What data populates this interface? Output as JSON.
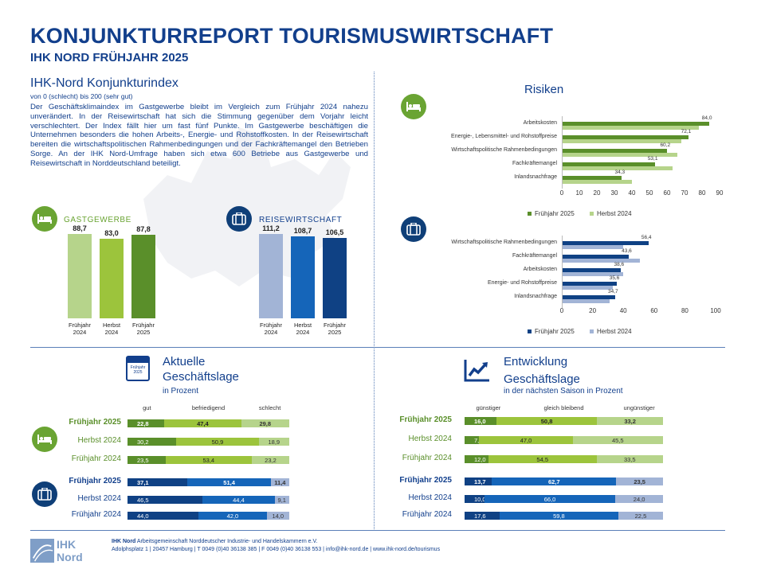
{
  "header": {
    "title": "KONJUNKTURREPORT TOURISMUSWIRTSCHAFT",
    "subtitle": "IHK NORD FRÜHJAHR 2025"
  },
  "index": {
    "title": "IHK-Nord Konjunkturindex",
    "scale": "von 0 (schlecht) bis 200 (sehr gut)",
    "text": "Der Geschäftsklimaindex im Gastgewerbe bleibt im Vergleich zum Frühjahr 2024 nahezu unverändert. In der Reisewirtschaft hat sich die Stimmung gegenüber dem Vorjahr leicht verschlechtert. Der Index fällt hier um fast fünf Punkte. Im Gastgewerbe beschäftigen die Unternehmen besonders die hohen Arbeits-, Energie- und Rohstoffkosten. In der Reisewirtschaft bereiten die wirtschaftspolitischen Rahmenbedingungen und der Fachkräftemangel den Betrieben Sorge. An der IHK Nord-Umfrage haben sich etwa 600 Betriebe aus Gastgewerbe und Reisewirtschaft in Norddeutschland beteiligt."
  },
  "colors": {
    "navy": "#123f8c",
    "green_light": "#b6d48b",
    "green_mid": "#9cc43c",
    "green_dark": "#5a8f2a",
    "blue_light": "#a2b4d6",
    "blue_mid": "#1565b9",
    "blue_dark": "#0f4184"
  },
  "chart_data": [
    {
      "type": "bar",
      "id": "gastgewerbe",
      "label": "GASTGEWERBE",
      "icon": "bed-icon",
      "categories": [
        "Frühjahr 2024",
        "Herbst 2024",
        "Frühjahr 2025"
      ],
      "values": [
        88.7,
        83.0,
        87.8
      ],
      "value_labels": [
        "88,7",
        "83,0",
        "87,8"
      ]
    },
    {
      "type": "bar",
      "id": "reisewirtschaft",
      "label": "REISEWIRTSCHAFT",
      "icon": "luggage-icon",
      "categories": [
        "Frühjahr 2024",
        "Herbst 2024",
        "Frühjahr 2025"
      ],
      "values": [
        111.2,
        108.7,
        106.5
      ],
      "value_labels": [
        "111,2",
        "108,7",
        "106,5"
      ]
    },
    {
      "type": "bar",
      "id": "risiken-gastgewerbe",
      "title": "Risiken",
      "orientation": "horizontal",
      "icon": "bed-icon",
      "categories": [
        "Arbeitskosten",
        "Energie-, Lebensmittel- und Rohstoffpreise",
        "Wirtschaftspolitische Rahmenbedingungen",
        "Fachkräftemangel",
        "Inlandsnachfrage"
      ],
      "series": [
        {
          "name": "Frühjahr 2025",
          "values": [
            84.0,
            72.1,
            60.2,
            53.1,
            34.3
          ],
          "value_labels": [
            "84,0",
            "72,1",
            "60,2",
            "53,1",
            "34,3"
          ]
        },
        {
          "name": "Herbst 2024",
          "values": [
            78,
            68,
            66,
            63,
            40
          ]
        }
      ],
      "xlim": [
        0,
        90
      ],
      "xticks": [
        "0",
        "10",
        "20",
        "30",
        "40",
        "50",
        "60",
        "70",
        "80",
        "90"
      ]
    },
    {
      "type": "bar",
      "id": "risiken-reisewirtschaft",
      "orientation": "horizontal",
      "icon": "luggage-icon",
      "categories": [
        "Wirtschaftspolitische Rahmenbedingungen",
        "Fachkräftemangel",
        "Arbeitskosten",
        "Energie- und Rohstoffpreise",
        "Inlandsnachfrage"
      ],
      "series": [
        {
          "name": "Frühjahr 2025",
          "values": [
            56.4,
            43.6,
            38.6,
            35.6,
            34.7
          ],
          "value_labels": [
            "56,4",
            "43,6",
            "38,6",
            "35,6",
            "34,7"
          ]
        },
        {
          "name": "Herbst 2024",
          "values": [
            40,
            51,
            40,
            33,
            31
          ]
        }
      ],
      "xlim": [
        0,
        100
      ],
      "xticks": [
        "0",
        "20",
        "40",
        "60",
        "80",
        "100"
      ]
    },
    {
      "type": "bar",
      "id": "geschaeftslage",
      "stacked": true,
      "orientation": "horizontal",
      "title": "Aktuelle",
      "title2": "Geschäftslage",
      "subtitle": "in Prozent",
      "icon": "calendar-icon",
      "icon_label": "Frühjahr 2025",
      "columns": [
        "gut",
        "befriedigend",
        "schlecht"
      ],
      "groups": [
        {
          "icon": "bed-icon",
          "rows": [
            {
              "label": "Frühjahr 2025",
              "values": [
                22.8,
                47.4,
                29.8
              ],
              "value_labels": [
                "22,8",
                "47,4",
                "29,8"
              ]
            },
            {
              "label": "Herbst 2024",
              "values": [
                30.2,
                50.9,
                18.9
              ],
              "value_labels": [
                "30,2",
                "50,9",
                "18,9"
              ]
            },
            {
              "label": "Frühjahr 2024",
              "values": [
                23.5,
                53.4,
                23.2
              ],
              "value_labels": [
                "23,5",
                "53,4",
                "23,2"
              ]
            }
          ]
        },
        {
          "icon": "luggage-icon",
          "rows": [
            {
              "label": "Frühjahr 2025",
              "values": [
                37.1,
                51.4,
                11.4
              ],
              "value_labels": [
                "37,1",
                "51,4",
                "11,4"
              ]
            },
            {
              "label": "Herbst 2024",
              "values": [
                46.5,
                44.4,
                9.1
              ],
              "value_labels": [
                "46,5",
                "44,4",
                "9,1"
              ]
            },
            {
              "label": "Frühjahr 2024",
              "values": [
                44.0,
                42.0,
                14.0
              ],
              "value_labels": [
                "44,0",
                "42,0",
                "14,0"
              ]
            }
          ]
        }
      ]
    },
    {
      "type": "bar",
      "id": "entwicklung",
      "stacked": true,
      "orientation": "horizontal",
      "title": "Entwicklung",
      "title2": "Geschäftslage",
      "subtitle": "in der nächsten Saison in Prozent",
      "icon": "trend-icon",
      "columns": [
        "günstiger",
        "gleich bleibend",
        "ungünstiger"
      ],
      "groups": [
        {
          "rows": [
            {
              "label": "Frühjahr 2025",
              "values": [
                16.0,
                50.8,
                33.2
              ],
              "value_labels": [
                "16,0",
                "50,8",
                "33,2"
              ]
            },
            {
              "label": "Herbst 2024",
              "values": [
                7.4,
                47.0,
                45.5
              ],
              "value_labels": [
                "7,4",
                "47,0",
                "45,5"
              ]
            },
            {
              "label": "Frühjahr 2024",
              "values": [
                12.0,
                54.5,
                33.5
              ],
              "value_labels": [
                "12,0",
                "54,5",
                "33,5"
              ]
            }
          ]
        },
        {
          "rows": [
            {
              "label": "Frühjahr 2025",
              "values": [
                13.7,
                62.7,
                23.5
              ],
              "value_labels": [
                "13,7",
                "62,7",
                "23,5"
              ]
            },
            {
              "label": "Herbst 2024",
              "values": [
                10.0,
                66.0,
                24.0
              ],
              "value_labels": [
                "10,0",
                "66,0",
                "24,0"
              ]
            },
            {
              "label": "Frühjahr 2024",
              "values": [
                17.6,
                59.8,
                22.5
              ],
              "value_labels": [
                "17,6",
                "59,8",
                "22,5"
              ]
            }
          ]
        }
      ]
    }
  ],
  "footer": {
    "logo": "IHK Nord",
    "org_bold": "IHK Nord",
    "org_rest": " Arbeitsgemeinschaft Norddeutscher Industrie- und Handelskammern e.V.",
    "address": "Adolphsplatz 1 | 20457 Hamburg | T 0049 (0)40 36138 385  | F 0049 (0)40 36138 553 | info@ihk-nord.de | www.ihk-nord.de/tourismus"
  }
}
